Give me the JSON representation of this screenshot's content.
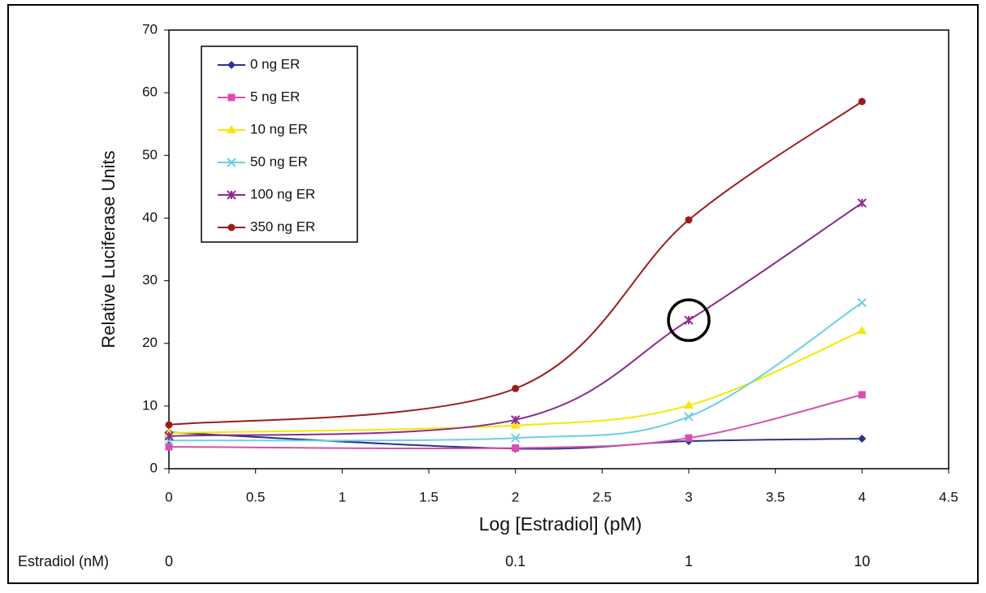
{
  "chart_data": {
    "type": "line",
    "x_label": "Log [Estradiol] (pM)",
    "y_label": "Relative Luciferase Units",
    "x": [
      0,
      2,
      3,
      4
    ],
    "series": [
      {
        "name": "0 ng ER",
        "color": "#2e3192",
        "marker": "diamond",
        "values": [
          5.8,
          3.2,
          4.4,
          4.8
        ]
      },
      {
        "name": "5 ng ER",
        "color": "#d84fae",
        "marker": "square",
        "values": [
          3.5,
          3.3,
          4.9,
          11.8
        ]
      },
      {
        "name": "10 ng ER",
        "color": "#f5e800",
        "marker": "triangle",
        "values": [
          5.7,
          6.9,
          10.1,
          22.0
        ]
      },
      {
        "name": "50 ng ER",
        "color": "#6dcfdf",
        "marker": "x",
        "values": [
          4.5,
          4.9,
          8.3,
          26.5
        ]
      },
      {
        "name": "100 ng ER",
        "color": "#8e2a8f",
        "marker": "star",
        "values": [
          5.2,
          7.8,
          23.7,
          42.4
        ]
      },
      {
        "name": "350 ng ER",
        "color": "#9c1c1c",
        "marker": "circle",
        "values": [
          7.0,
          12.8,
          39.7,
          58.6
        ]
      }
    ],
    "xlim": [
      0,
      4.5
    ],
    "xticks": [
      0,
      0.5,
      1,
      1.5,
      2,
      2.5,
      3,
      3.5,
      4,
      4.5
    ],
    "ylim": [
      0,
      70
    ],
    "yticks": [
      0,
      10,
      20,
      30,
      40,
      50,
      60,
      70
    ],
    "grid": false,
    "legend": "top-left",
    "highlight_point": {
      "series": 4,
      "index": 2
    },
    "secondary_axis": {
      "label": "Estradiol (nM)",
      "labels": [
        "0",
        "0.1",
        "1",
        "10"
      ]
    }
  }
}
